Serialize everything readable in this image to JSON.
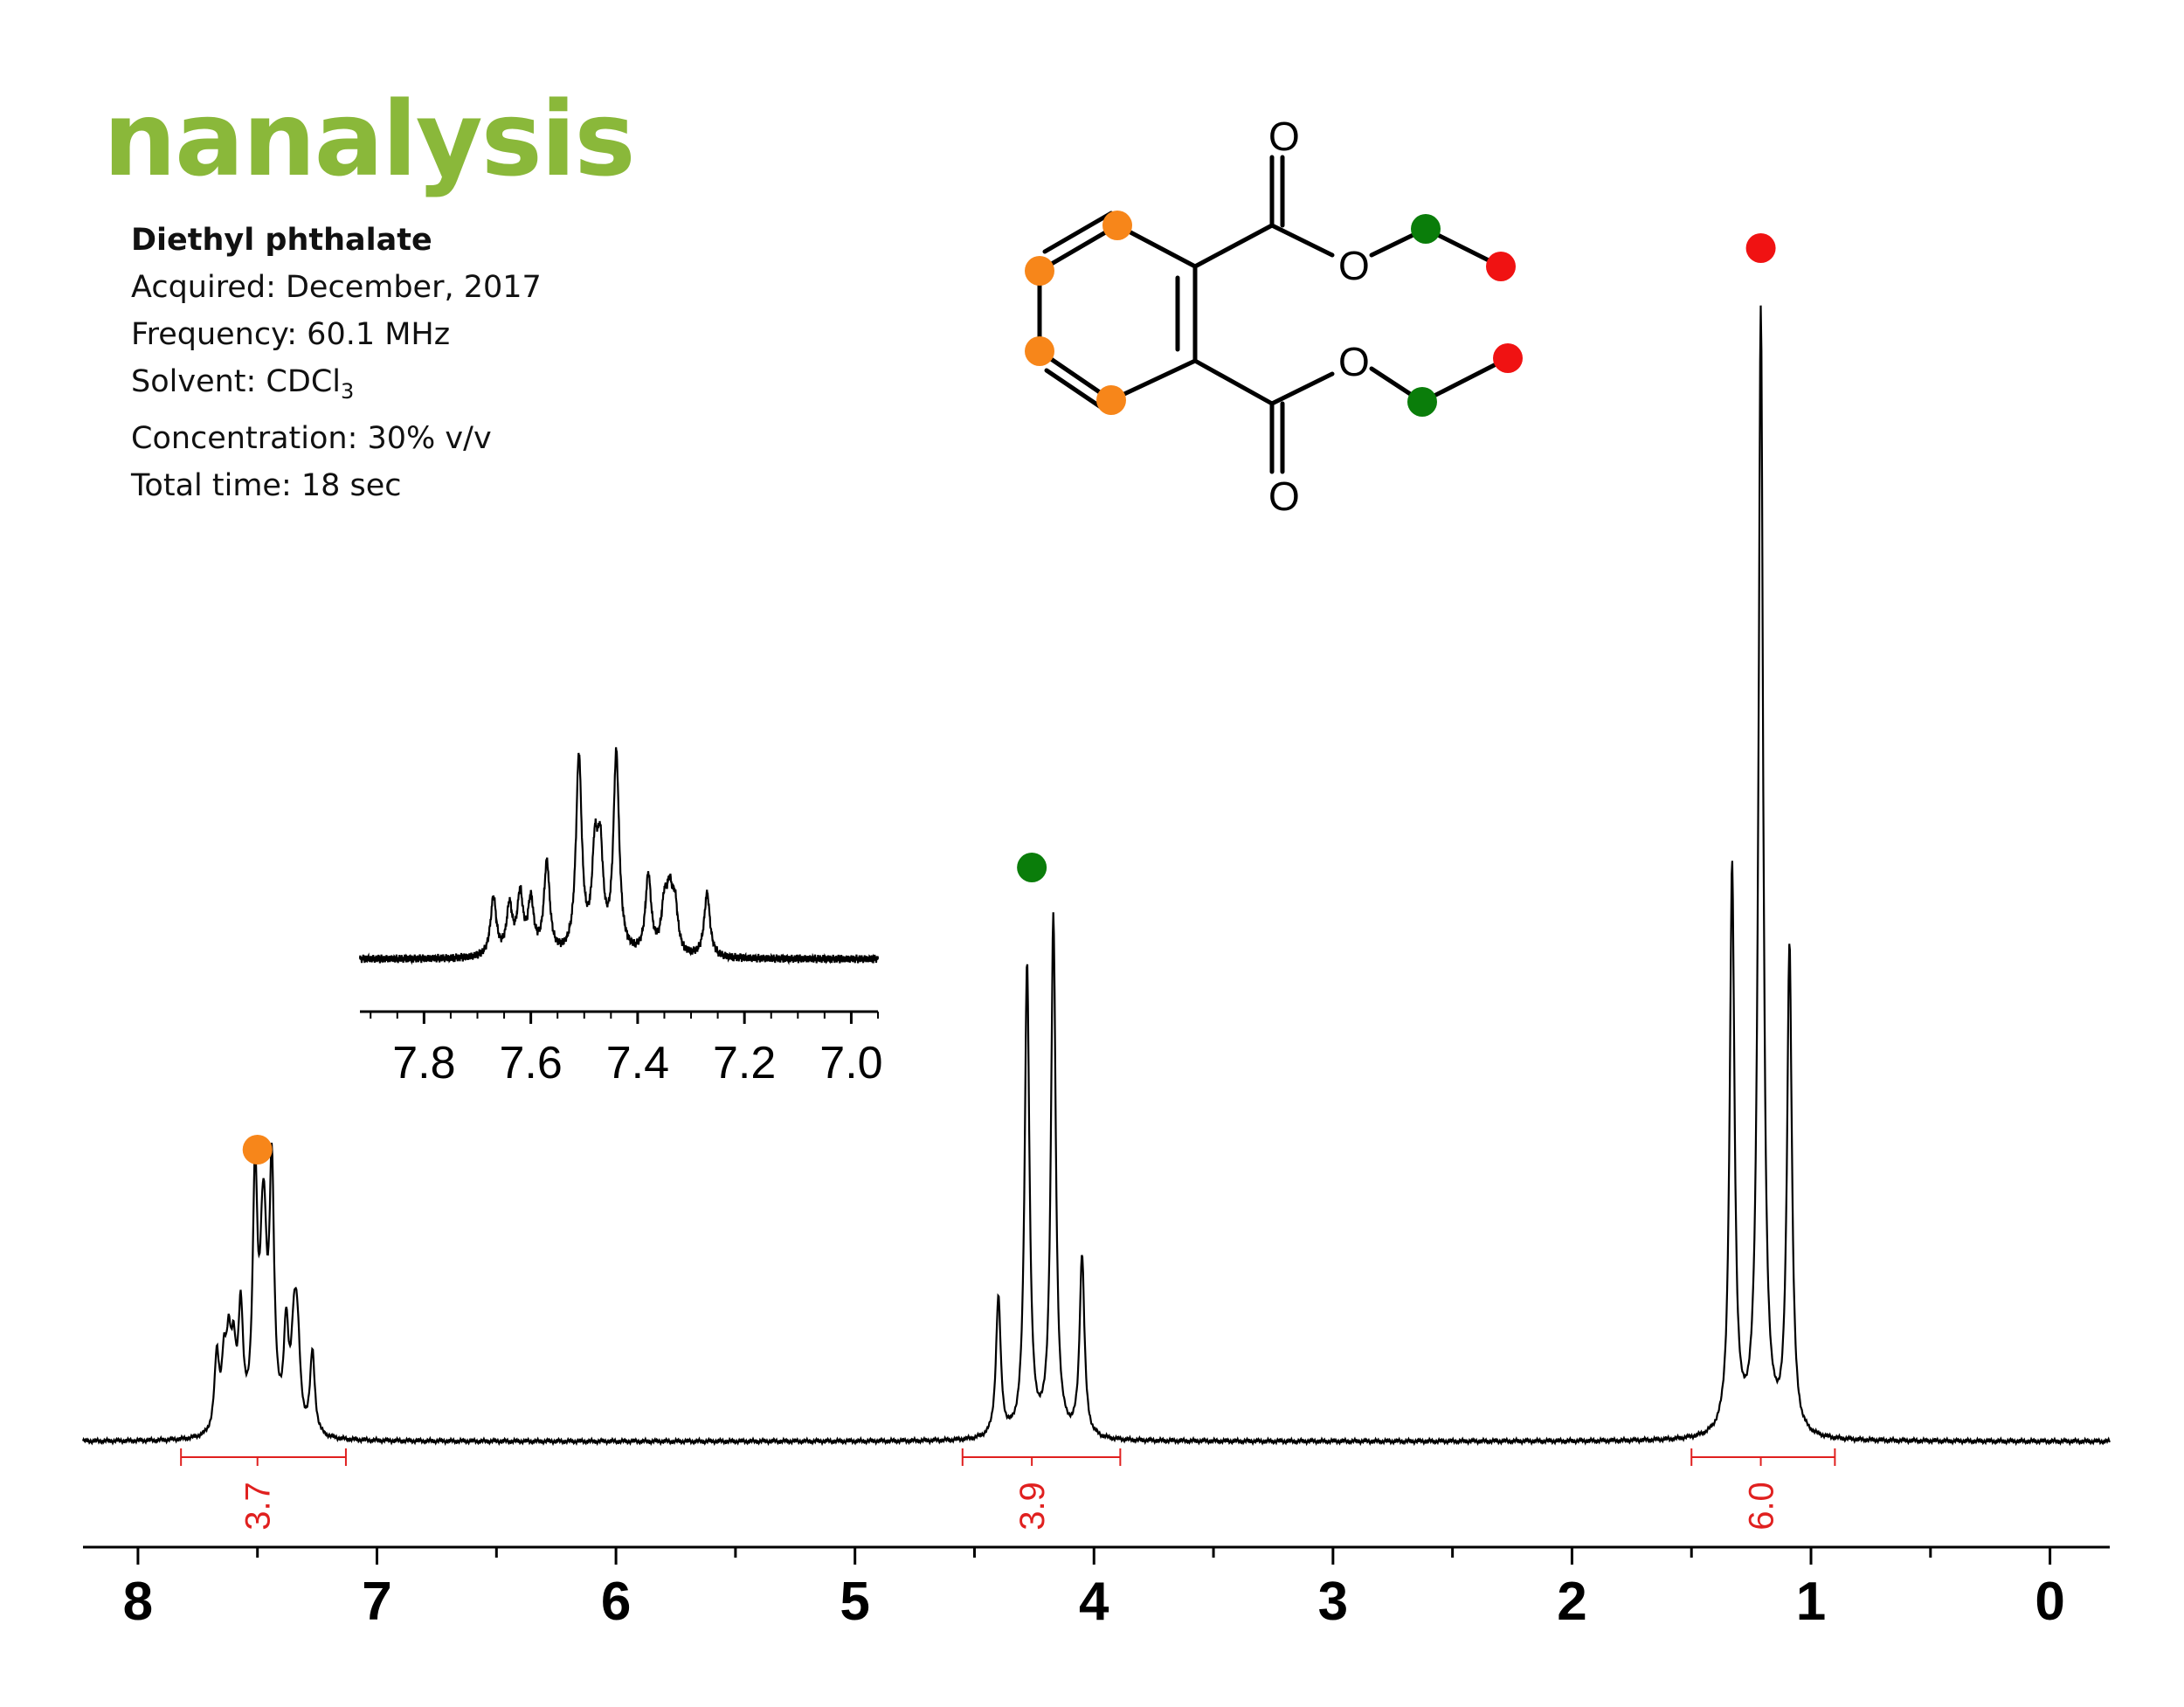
{
  "logo": {
    "text": "nanalysis",
    "color": "#8ab83a"
  },
  "info": {
    "title": "Diethyl phthalate",
    "acquired": "Acquired: December, 2017",
    "frequency": "Frequency: 60.1 MHz",
    "solvent_prefix": "Solvent: CDCl",
    "solvent_sub": "3",
    "concentration": "Concentration: 30% v/v",
    "total_time": "Total time: 18 sec"
  },
  "colors": {
    "aromatic": "#f7861a",
    "ch2": "#0a7d0a",
    "ch3": "#f01212",
    "integral": "#e0201f",
    "trace": "#000000"
  },
  "molecule": {
    "atom_labels": [
      "O",
      "O",
      "O",
      "O"
    ]
  },
  "chart_data": {
    "type": "line",
    "title": "",
    "xlabel": "",
    "ylabel": "",
    "x_reversed": true,
    "xlim": [
      8.23,
      -0.25
    ],
    "x_ticks": [
      "8",
      "7",
      "6",
      "5",
      "4",
      "3",
      "2",
      "1",
      "0"
    ],
    "peaks": [
      {
        "ppm": 7.67,
        "height": 0.067
      },
      {
        "ppm": 7.64,
        "height": 0.055
      },
      {
        "ppm": 7.62,
        "height": 0.067
      },
      {
        "ppm": 7.6,
        "height": 0.06
      },
      {
        "ppm": 7.57,
        "height": 0.105
      },
      {
        "ppm": 7.51,
        "height": 0.225
      },
      {
        "ppm": 7.48,
        "height": 0.105
      },
      {
        "ppm": 7.47,
        "height": 0.106
      },
      {
        "ppm": 7.44,
        "height": 0.228
      },
      {
        "ppm": 7.38,
        "height": 0.09
      },
      {
        "ppm": 7.35,
        "height": 0.052
      },
      {
        "ppm": 7.34,
        "height": 0.06
      },
      {
        "ppm": 7.33,
        "height": 0.052
      },
      {
        "ppm": 7.27,
        "height": 0.073
      },
      {
        "ppm": 4.4,
        "height": 0.124
      },
      {
        "ppm": 4.28,
        "height": 0.42
      },
      {
        "ppm": 4.17,
        "height": 0.462
      },
      {
        "ppm": 4.05,
        "height": 0.162
      },
      {
        "ppm": 1.33,
        "height": 0.505
      },
      {
        "ppm": 1.21,
        "height": 1.0
      },
      {
        "ppm": 1.09,
        "height": 0.434
      }
    ],
    "peak_markers": [
      {
        "ppm": 7.5,
        "color": "aromatic",
        "group": "aromatic CH"
      },
      {
        "ppm": 4.26,
        "color": "ch2",
        "group": "OCH2"
      },
      {
        "ppm": 1.21,
        "color": "ch3",
        "group": "CH3"
      }
    ],
    "integrals": [
      {
        "label": "3.7",
        "value": 3.7,
        "from": 7.82,
        "to": 7.13,
        "center": 7.5
      },
      {
        "label": "3.9",
        "value": 3.9,
        "from": 4.55,
        "to": 3.89,
        "center": 4.26
      },
      {
        "label": "6.0",
        "value": 6.0,
        "from": 1.5,
        "to": 0.9,
        "center": 1.21
      }
    ],
    "inset": {
      "xlim": [
        7.92,
        6.95
      ],
      "x_ticks": [
        "7.8",
        "7.6",
        "7.4",
        "7.2",
        "7.0"
      ],
      "region": "aromatic 7.0–7.8 ppm"
    }
  }
}
